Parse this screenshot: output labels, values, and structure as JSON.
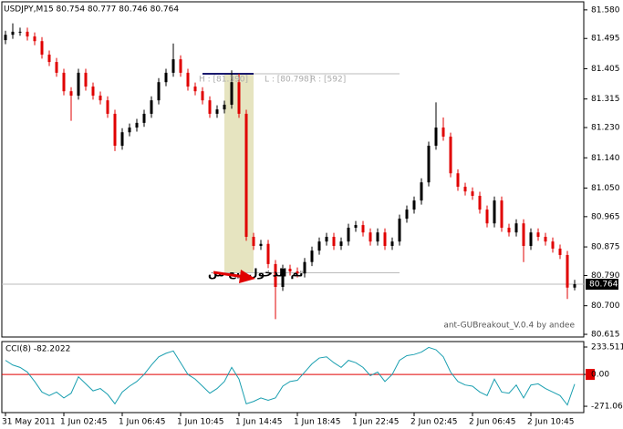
{
  "chart_data": {
    "type": "candlestick",
    "title": "USDJPY,M15  80.754 80.777 80.746 80.764",
    "categories": [
      "31 May 2011",
      null,
      null,
      null,
      null,
      null,
      null,
      null,
      "1 Jun 02:45",
      null,
      null,
      null,
      null,
      null,
      null,
      null,
      "1 Jun 06:45",
      null,
      null,
      null,
      null,
      null,
      null,
      null,
      "1 Jun 10:45",
      null,
      null,
      null,
      null,
      null,
      null,
      null,
      "1 Jun 14:45",
      null,
      null,
      null,
      null,
      null,
      null,
      null,
      "1 Jun 18:45",
      null,
      null,
      null,
      null,
      null,
      null,
      null,
      "1 Jun 22:45",
      null,
      null,
      null,
      null,
      null,
      null,
      null,
      "2 Jun 02:45",
      null,
      null,
      null,
      null,
      null,
      null,
      null,
      "2 Jun 06:45",
      null,
      null,
      null,
      null,
      null,
      null,
      null,
      "2 Jun 10:45",
      null,
      null,
      null,
      null,
      null,
      null
    ],
    "open": [
      81.49,
      81.506,
      81.515,
      81.515,
      81.501,
      81.487,
      81.447,
      81.425,
      81.393,
      81.338,
      81.325,
      81.393,
      81.352,
      81.325,
      81.311,
      81.271,
      81.176,
      81.216,
      81.23,
      81.244,
      81.271,
      81.311,
      81.365,
      81.393,
      81.433,
      81.393,
      81.352,
      81.338,
      81.311,
      81.271,
      81.284,
      81.298,
      81.365,
      81.271,
      80.905,
      80.878,
      80.884,
      80.824,
      80.756,
      80.81,
      80.802,
      80.796,
      80.83,
      80.864,
      80.891,
      80.905,
      80.878,
      80.891,
      80.932,
      80.94,
      80.918,
      80.891,
      80.918,
      80.878,
      80.891,
      80.959,
      80.986,
      81.013,
      81.067,
      81.176,
      81.23,
      81.203,
      81.094,
      81.054,
      81.04,
      81.027,
      80.986,
      80.945,
      81.013,
      80.932,
      80.918,
      80.945,
      80.878,
      80.918,
      80.905,
      80.891,
      80.87,
      80.851,
      80.754
    ],
    "high": [
      81.518,
      81.54,
      81.527,
      81.527,
      81.513,
      81.499,
      81.459,
      81.437,
      81.405,
      81.35,
      81.405,
      81.405,
      81.364,
      81.337,
      81.323,
      81.283,
      81.228,
      81.242,
      81.256,
      81.283,
      81.323,
      81.377,
      81.405,
      81.48,
      81.445,
      81.405,
      81.364,
      81.35,
      81.323,
      81.296,
      81.31,
      81.4,
      81.39,
      81.283,
      80.917,
      80.896,
      80.896,
      80.836,
      80.822,
      80.822,
      80.814,
      80.842,
      80.876,
      80.903,
      80.917,
      80.917,
      80.903,
      80.944,
      80.952,
      80.952,
      80.93,
      80.93,
      80.93,
      80.903,
      80.971,
      80.998,
      81.025,
      81.079,
      81.188,
      81.305,
      81.26,
      81.215,
      81.106,
      81.066,
      81.052,
      81.039,
      80.998,
      81.025,
      81.025,
      80.944,
      80.957,
      80.957,
      80.93,
      80.93,
      80.917,
      80.903,
      80.882,
      80.863,
      80.777
    ],
    "low": [
      81.478,
      81.494,
      81.503,
      81.489,
      81.475,
      81.435,
      81.413,
      81.381,
      81.326,
      81.25,
      81.313,
      81.34,
      81.313,
      81.299,
      81.259,
      81.16,
      81.164,
      81.204,
      81.218,
      81.232,
      81.259,
      81.299,
      81.353,
      81.381,
      81.381,
      81.34,
      81.326,
      81.299,
      81.259,
      81.259,
      81.272,
      81.286,
      81.259,
      80.893,
      80.866,
      80.866,
      80.812,
      80.66,
      80.744,
      80.79,
      80.784,
      80.784,
      80.818,
      80.852,
      80.879,
      80.866,
      80.866,
      80.879,
      80.92,
      80.906,
      80.879,
      80.879,
      80.866,
      80.866,
      80.879,
      80.947,
      80.974,
      81.001,
      81.055,
      81.164,
      81.191,
      81.082,
      81.042,
      81.028,
      81.015,
      80.974,
      80.933,
      80.933,
      80.92,
      80.906,
      80.906,
      80.83,
      80.866,
      80.893,
      80.879,
      80.858,
      80.839,
      80.72,
      80.746
    ],
    "close": [
      81.506,
      81.515,
      81.515,
      81.501,
      81.487,
      81.447,
      81.425,
      81.393,
      81.338,
      81.325,
      81.393,
      81.352,
      81.325,
      81.311,
      81.271,
      81.176,
      81.216,
      81.23,
      81.244,
      81.271,
      81.311,
      81.365,
      81.393,
      81.433,
      81.393,
      81.352,
      81.338,
      81.311,
      81.271,
      81.284,
      81.298,
      81.365,
      81.271,
      80.905,
      80.878,
      80.884,
      80.824,
      80.756,
      80.81,
      80.802,
      80.796,
      80.83,
      80.864,
      80.891,
      80.905,
      80.878,
      80.891,
      80.932,
      80.94,
      80.918,
      80.891,
      80.918,
      80.878,
      80.891,
      80.959,
      80.986,
      81.013,
      81.067,
      81.176,
      81.23,
      81.203,
      81.094,
      81.054,
      81.04,
      81.027,
      80.986,
      80.945,
      81.013,
      80.932,
      80.918,
      80.945,
      80.878,
      80.918,
      80.905,
      80.891,
      80.87,
      80.851,
      80.754,
      80.764
    ],
    "up_color": "#000000",
    "down_color": "#e00000",
    "ylim": [
      80.607,
      81.604
    ],
    "yticks": [
      {
        "value": 81.58,
        "label": "81.580"
      },
      {
        "value": 81.495,
        "label": "81.495"
      },
      {
        "value": 81.405,
        "label": "81.405"
      },
      {
        "value": 81.315,
        "label": "81.315"
      },
      {
        "value": 81.23,
        "label": "81.230"
      },
      {
        "value": 81.14,
        "label": "81.140"
      },
      {
        "value": 81.05,
        "label": "81.050"
      },
      {
        "value": 80.965,
        "label": "80.965"
      },
      {
        "value": 80.875,
        "label": "80.875"
      },
      {
        "value": 80.79,
        "label": "80.790"
      },
      {
        "value": 80.7,
        "label": "80.700"
      },
      {
        "value": 80.615,
        "label": "80.615"
      }
    ],
    "last_price": {
      "value": 80.764,
      "label": "80.764"
    },
    "box": {
      "high": 81.39,
      "low": 80.798,
      "color": "#e6e4c0",
      "labels": [
        "H : [81.390]",
        "L : [80.798]",
        "R : [592]"
      ]
    },
    "annotation": "تم الدخول بيع من",
    "watermark": "ant-GUBreakout_V.0.4 by andee",
    "indicator": {
      "type": "line",
      "title": "CCI(8) -82.2022",
      "color": "#1a9fb0",
      "values": [
        120,
        80,
        60,
        20,
        -60,
        -150,
        -180,
        -150,
        -200,
        -160,
        -20,
        -80,
        -140,
        -120,
        -170,
        -250,
        -150,
        -100,
        -60,
        0,
        80,
        150,
        180,
        200,
        100,
        0,
        -40,
        -100,
        -160,
        -120,
        -60,
        60,
        -40,
        -250,
        -230,
        -200,
        -220,
        -200,
        -100,
        -60,
        -50,
        20,
        90,
        140,
        150,
        100,
        60,
        120,
        100,
        60,
        -10,
        20,
        -60,
        0,
        120,
        160,
        170,
        190,
        230,
        210,
        150,
        20,
        -60,
        -90,
        -100,
        -150,
        -180,
        -40,
        -150,
        -160,
        -90,
        -200,
        -90,
        -80,
        -120,
        -150,
        -180,
        -260,
        -82.2022
      ],
      "ylim": [
        -325,
        280
      ],
      "yticks": [
        233.5117,
        {
          "value": 0,
          "label": "0.00"
        },
        -271.065
      ],
      "zero_color": "#e00000"
    }
  }
}
